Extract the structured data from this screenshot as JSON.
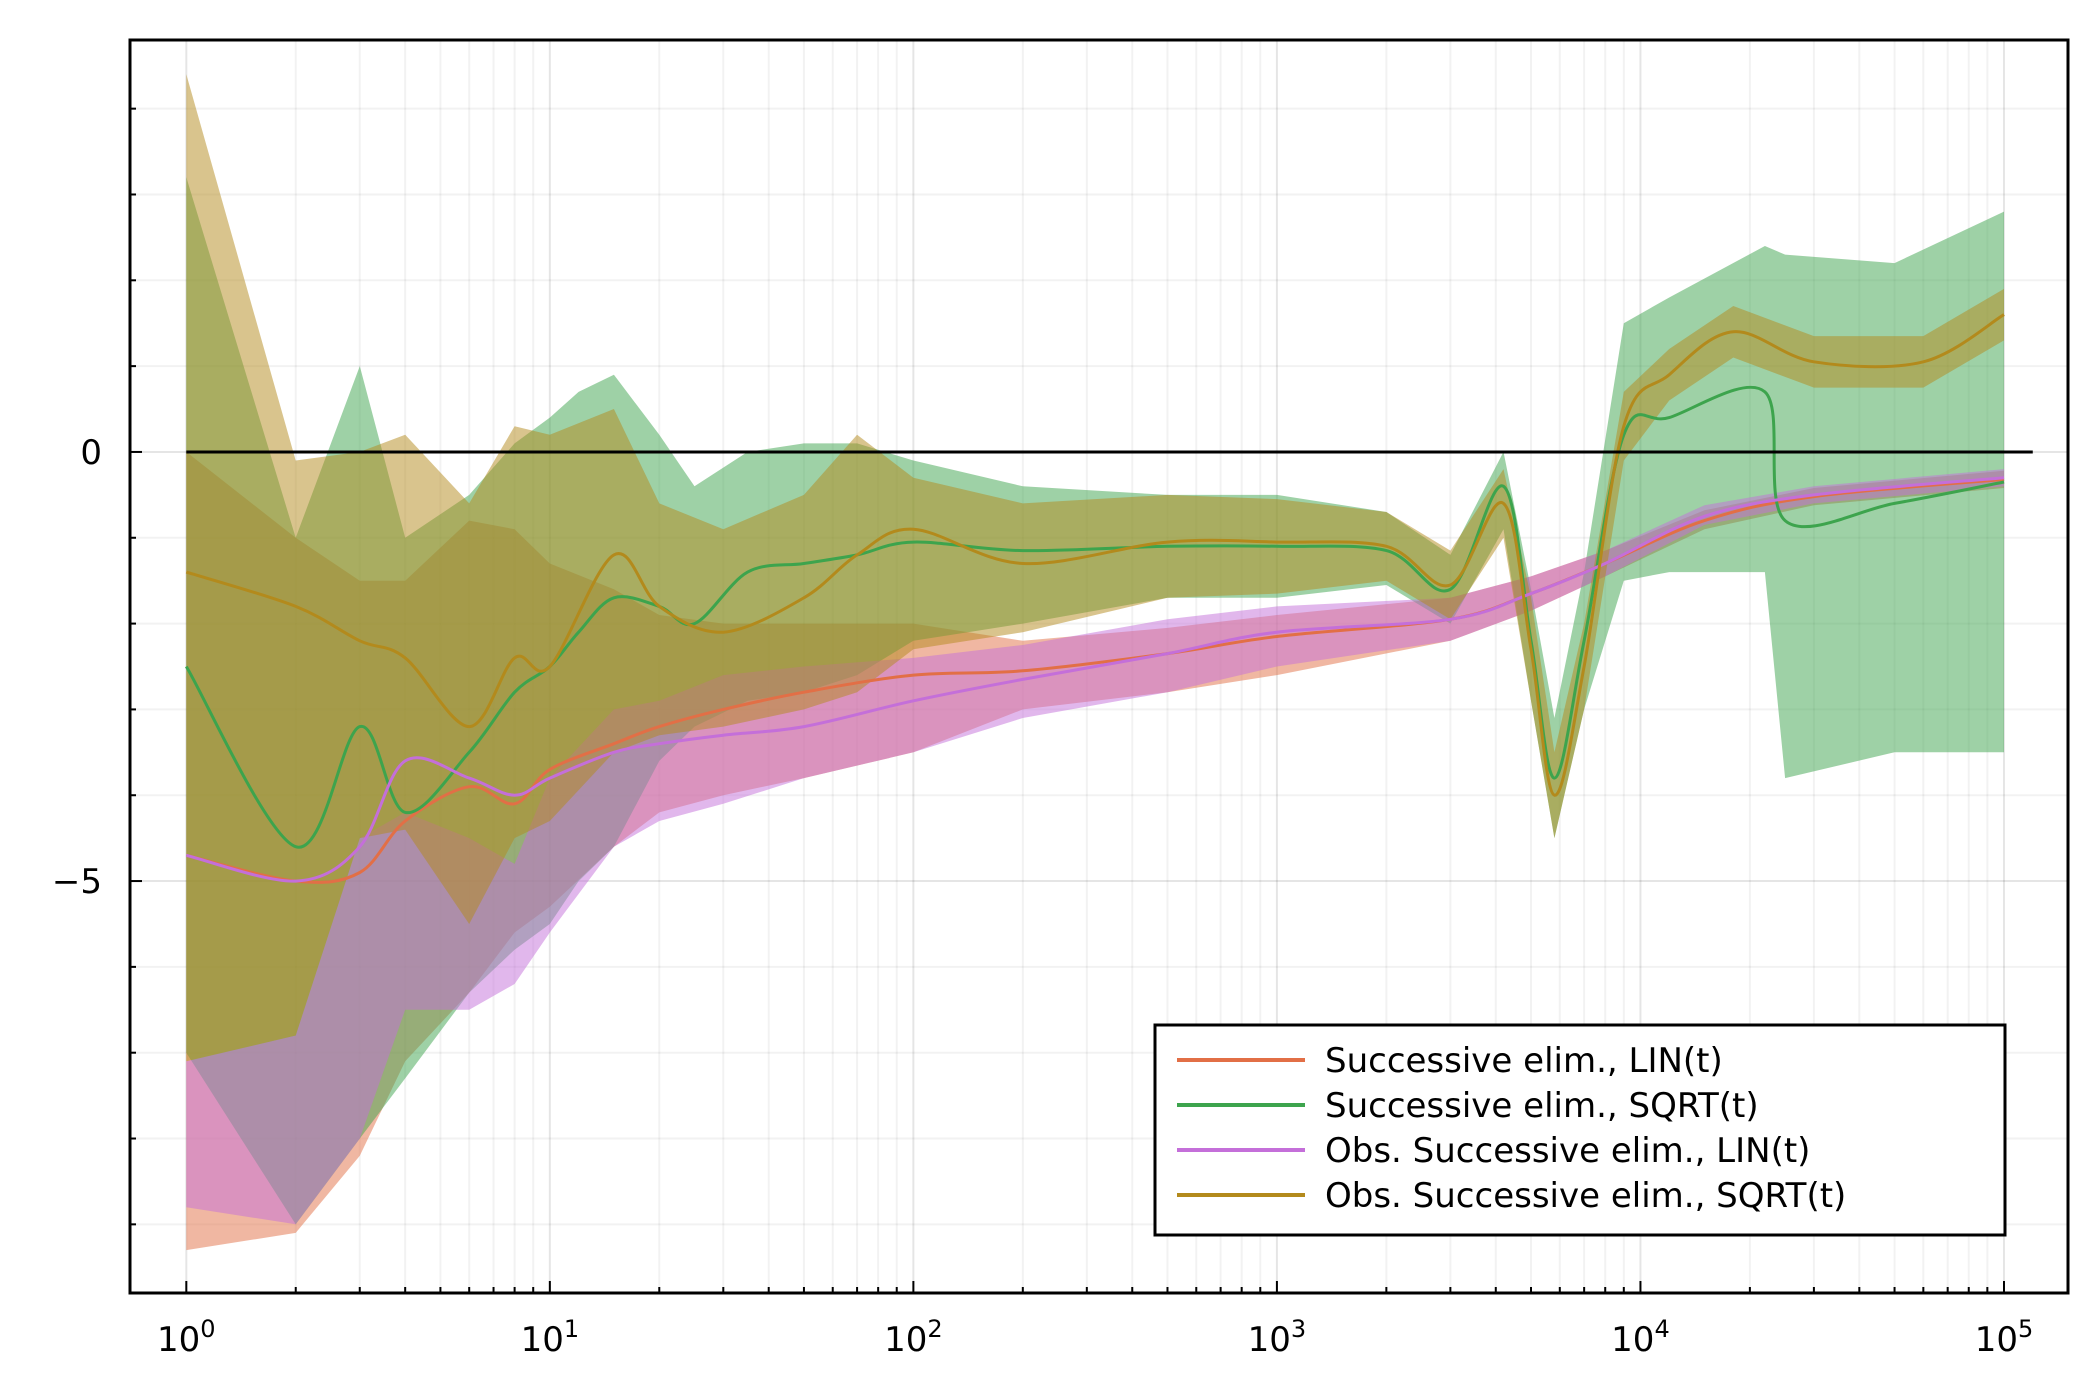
{
  "chart_data": {
    "type": "line",
    "title": "",
    "xlabel": "",
    "ylabel": "",
    "x_scale": "log10",
    "xlim": [
      0.7,
      150000
    ],
    "ylim": [
      -9.8,
      4.8
    ],
    "grid": true,
    "legend_position": "bottom-right",
    "x_ticks": [
      {
        "value": 1,
        "base": "10",
        "exp": "0"
      },
      {
        "value": 10,
        "base": "10",
        "exp": "1"
      },
      {
        "value": 100,
        "base": "10",
        "exp": "2"
      },
      {
        "value": 1000,
        "base": "10",
        "exp": "3"
      },
      {
        "value": 10000,
        "base": "10",
        "exp": "4"
      },
      {
        "value": 100000,
        "base": "10",
        "exp": "5"
      }
    ],
    "y_ticks": [
      {
        "value": 0,
        "label": "0"
      },
      {
        "value": -5,
        "label": "−5"
      }
    ],
    "reference_line": {
      "y": 0,
      "x_end": 120000
    },
    "series": [
      {
        "name": "Successive elim., LIN(t)",
        "color": "#e26f46",
        "points": [
          {
            "x": 1,
            "y": -4.7,
            "lo": -9.3,
            "hi": 0
          },
          {
            "x": 2,
            "y": -5,
            "lo": -9.1,
            "hi": -1
          },
          {
            "x": 3,
            "y": -4.9,
            "lo": -8.2,
            "hi": -1.5
          },
          {
            "x": 4,
            "y": -4.3,
            "lo": -7.1,
            "hi": -1.5
          },
          {
            "x": 6,
            "y": -3.9,
            "lo": -6.3,
            "hi": -0.8
          },
          {
            "x": 8,
            "y": -4.1,
            "lo": -5.6,
            "hi": -0.9
          },
          {
            "x": 10,
            "y": -3.7,
            "lo": -5.3,
            "hi": -1.3
          },
          {
            "x": 15,
            "y": -3.4,
            "lo": -4.6,
            "hi": -1.6
          },
          {
            "x": 20,
            "y": -3.2,
            "lo": -4.2,
            "hi": -1.9
          },
          {
            "x": 30,
            "y": -3,
            "lo": -4,
            "hi": -2
          },
          {
            "x": 50,
            "y": -2.8,
            "lo": -3.8,
            "hi": -2
          },
          {
            "x": 100,
            "y": -2.6,
            "lo": -3.5,
            "hi": -2
          },
          {
            "x": 200,
            "y": -2.55,
            "lo": -3,
            "hi": -2.2
          },
          {
            "x": 500,
            "y": -2.35,
            "lo": -2.8,
            "hi": -2.05
          },
          {
            "x": 1000,
            "y": -2.15,
            "lo": -2.6,
            "hi": -1.9
          },
          {
            "x": 3000,
            "y": -1.95,
            "lo": -2.2,
            "hi": -1.7
          },
          {
            "x": 5000,
            "y": -1.65,
            "lo": -1.85,
            "hi": -1.45
          },
          {
            "x": 8000,
            "y": -1.3,
            "lo": -1.45,
            "hi": -1.15
          },
          {
            "x": 15000,
            "y": -0.8,
            "lo": -0.9,
            "hi": -0.68
          },
          {
            "x": 30000,
            "y": -0.52,
            "lo": -0.62,
            "hi": -0.42
          },
          {
            "x": 100000,
            "y": -0.32,
            "lo": -0.42,
            "hi": -0.22
          }
        ]
      },
      {
        "name": "Successive elim., SQRT(t)",
        "color": "#3da44d",
        "points": [
          {
            "x": 1,
            "y": -2.5,
            "lo": -7,
            "hi": 3.2
          },
          {
            "x": 2,
            "y": -4.6,
            "lo": -9,
            "hi": -1
          },
          {
            "x": 3,
            "y": -3.2,
            "lo": -8,
            "hi": 1
          },
          {
            "x": 4,
            "y": -4.2,
            "lo": -7.3,
            "hi": -1
          },
          {
            "x": 6,
            "y": -3.5,
            "lo": -6.3,
            "hi": -0.5
          },
          {
            "x": 8,
            "y": -2.8,
            "lo": -5.8,
            "hi": 0.1
          },
          {
            "x": 10,
            "y": -2.5,
            "lo": -5.5,
            "hi": 0.4
          },
          {
            "x": 12,
            "y": -2.1,
            "lo": -5,
            "hi": 0.7
          },
          {
            "x": 15,
            "y": -1.7,
            "lo": -4.6,
            "hi": 0.9
          },
          {
            "x": 20,
            "y": -1.8,
            "lo": -3.6,
            "hi": 0.2
          },
          {
            "x": 25,
            "y": -2,
            "lo": -3.2,
            "hi": -0.4
          },
          {
            "x": 35,
            "y": -1.4,
            "lo": -2.9,
            "hi": 0
          },
          {
            "x": 50,
            "y": -1.3,
            "lo": -2.8,
            "hi": 0.1
          },
          {
            "x": 70,
            "y": -1.2,
            "lo": -2.6,
            "hi": 0.1
          },
          {
            "x": 100,
            "y": -1.05,
            "lo": -2.2,
            "hi": -0.1
          },
          {
            "x": 200,
            "y": -1.15,
            "lo": -2,
            "hi": -0.4
          },
          {
            "x": 500,
            "y": -1.1,
            "lo": -1.7,
            "hi": -0.5
          },
          {
            "x": 1000,
            "y": -1.1,
            "lo": -1.7,
            "hi": -0.5
          },
          {
            "x": 2000,
            "y": -1.15,
            "lo": -1.55,
            "hi": -0.7
          },
          {
            "x": 3000,
            "y": -1.6,
            "lo": -2,
            "hi": -1.2
          },
          {
            "x": 4200,
            "y": -0.4,
            "lo": -0.9,
            "hi": 0
          },
          {
            "x": 5000,
            "y": -2.2,
            "lo": -2.9,
            "hi": -1.6
          },
          {
            "x": 5800,
            "y": -3.8,
            "lo": -4.5,
            "hi": -3.1
          },
          {
            "x": 7000,
            "y": -2.2,
            "lo": -3,
            "hi": -1.4
          },
          {
            "x": 9000,
            "y": 0.2,
            "lo": -1.5,
            "hi": 1.5
          },
          {
            "x": 12000,
            "y": 0.4,
            "lo": -1.4,
            "hi": 1.8
          },
          {
            "x": 22000,
            "y": 0.7,
            "lo": -1.4,
            "hi": 2.4
          },
          {
            "x": 25000,
            "y": -0.8,
            "lo": -3.8,
            "hi": 2.3
          },
          {
            "x": 50000,
            "y": -0.6,
            "lo": -3.5,
            "hi": 2.2
          },
          {
            "x": 100000,
            "y": -0.35,
            "lo": -3.5,
            "hi": 2.8
          }
        ]
      },
      {
        "name": "Obs. Successive elim., LIN(t)",
        "color": "#c46fd9",
        "points": [
          {
            "x": 1,
            "y": -4.7,
            "lo": -8.8,
            "hi": -7.1
          },
          {
            "x": 2,
            "y": -5,
            "lo": -9,
            "hi": -6.8
          },
          {
            "x": 3,
            "y": -4.6,
            "lo": -8,
            "hi": -4.5
          },
          {
            "x": 4,
            "y": -3.6,
            "lo": -6.5,
            "hi": -4.2
          },
          {
            "x": 6,
            "y": -3.8,
            "lo": -6.5,
            "hi": -4.5
          },
          {
            "x": 8,
            "y": -4,
            "lo": -6.2,
            "hi": -4.8
          },
          {
            "x": 10,
            "y": -3.8,
            "lo": -5.6,
            "hi": -3.8
          },
          {
            "x": 15,
            "y": -3.5,
            "lo": -4.6,
            "hi": -3
          },
          {
            "x": 20,
            "y": -3.4,
            "lo": -4.3,
            "hi": -2.9
          },
          {
            "x": 30,
            "y": -3.3,
            "lo": -4.1,
            "hi": -2.6
          },
          {
            "x": 50,
            "y": -3.2,
            "lo": -3.8,
            "hi": -2.5
          },
          {
            "x": 100,
            "y": -2.9,
            "lo": -3.5,
            "hi": -2.4
          },
          {
            "x": 200,
            "y": -2.65,
            "lo": -3.1,
            "hi": -2.25
          },
          {
            "x": 500,
            "y": -2.35,
            "lo": -2.8,
            "hi": -1.95
          },
          {
            "x": 1000,
            "y": -2.1,
            "lo": -2.5,
            "hi": -1.8
          },
          {
            "x": 3000,
            "y": -1.95,
            "lo": -2.2,
            "hi": -1.7
          },
          {
            "x": 5000,
            "y": -1.65,
            "lo": -1.85,
            "hi": -1.45
          },
          {
            "x": 8000,
            "y": -1.3,
            "lo": -1.45,
            "hi": -1.15
          },
          {
            "x": 15000,
            "y": -0.75,
            "lo": -0.85,
            "hi": -0.62
          },
          {
            "x": 30000,
            "y": -0.5,
            "lo": -0.6,
            "hi": -0.4
          },
          {
            "x": 100000,
            "y": -0.3,
            "lo": -0.4,
            "hi": -0.2
          }
        ]
      },
      {
        "name": "Obs. Successive elim., SQRT(t)",
        "color": "#b38a1c",
        "points": [
          {
            "x": 1,
            "y": -1.4,
            "lo": -7.1,
            "hi": 4.4
          },
          {
            "x": 2,
            "y": -1.8,
            "lo": -6.8,
            "hi": -0.1
          },
          {
            "x": 3,
            "y": -2.2,
            "lo": -4.5,
            "hi": 0
          },
          {
            "x": 4,
            "y": -2.4,
            "lo": -4.4,
            "hi": 0.2
          },
          {
            "x": 6,
            "y": -3.2,
            "lo": -5.5,
            "hi": -0.6
          },
          {
            "x": 8,
            "y": -2.4,
            "lo": -4.5,
            "hi": 0.3
          },
          {
            "x": 10,
            "y": -2.5,
            "lo": -4.3,
            "hi": 0.2
          },
          {
            "x": 15,
            "y": -1.2,
            "lo": -3.5,
            "hi": 0.5
          },
          {
            "x": 20,
            "y": -1.8,
            "lo": -3.3,
            "hi": -0.6
          },
          {
            "x": 30,
            "y": -2.1,
            "lo": -3.2,
            "hi": -0.9
          },
          {
            "x": 50,
            "y": -1.7,
            "lo": -3,
            "hi": -0.5
          },
          {
            "x": 70,
            "y": -1.2,
            "lo": -2.8,
            "hi": 0.2
          },
          {
            "x": 100,
            "y": -0.9,
            "lo": -2.3,
            "hi": -0.3
          },
          {
            "x": 200,
            "y": -1.3,
            "lo": -2.1,
            "hi": -0.6
          },
          {
            "x": 500,
            "y": -1.05,
            "lo": -1.7,
            "hi": -0.5
          },
          {
            "x": 1000,
            "y": -1.05,
            "lo": -1.65,
            "hi": -0.55
          },
          {
            "x": 2000,
            "y": -1.1,
            "lo": -1.5,
            "hi": -0.7
          },
          {
            "x": 3000,
            "y": -1.55,
            "lo": -1.95,
            "hi": -1.15
          },
          {
            "x": 4200,
            "y": -0.6,
            "lo": -1,
            "hi": -0.2
          },
          {
            "x": 5000,
            "y": -2.3,
            "lo": -2.9,
            "hi": -1.7
          },
          {
            "x": 5800,
            "y": -4,
            "lo": -4.5,
            "hi": -3.5
          },
          {
            "x": 7000,
            "y": -2.5,
            "lo": -3,
            "hi": -2
          },
          {
            "x": 9000,
            "y": 0.3,
            "lo": -0.1,
            "hi": 0.7
          },
          {
            "x": 12000,
            "y": 0.9,
            "lo": 0.6,
            "hi": 1.2
          },
          {
            "x": 18000,
            "y": 1.4,
            "lo": 1.1,
            "hi": 1.7
          },
          {
            "x": 30000,
            "y": 1.05,
            "lo": 0.75,
            "hi": 1.35
          },
          {
            "x": 60000,
            "y": 1.05,
            "lo": 0.75,
            "hi": 1.35
          },
          {
            "x": 100000,
            "y": 1.6,
            "lo": 1.3,
            "hi": 1.9
          }
        ]
      }
    ]
  }
}
